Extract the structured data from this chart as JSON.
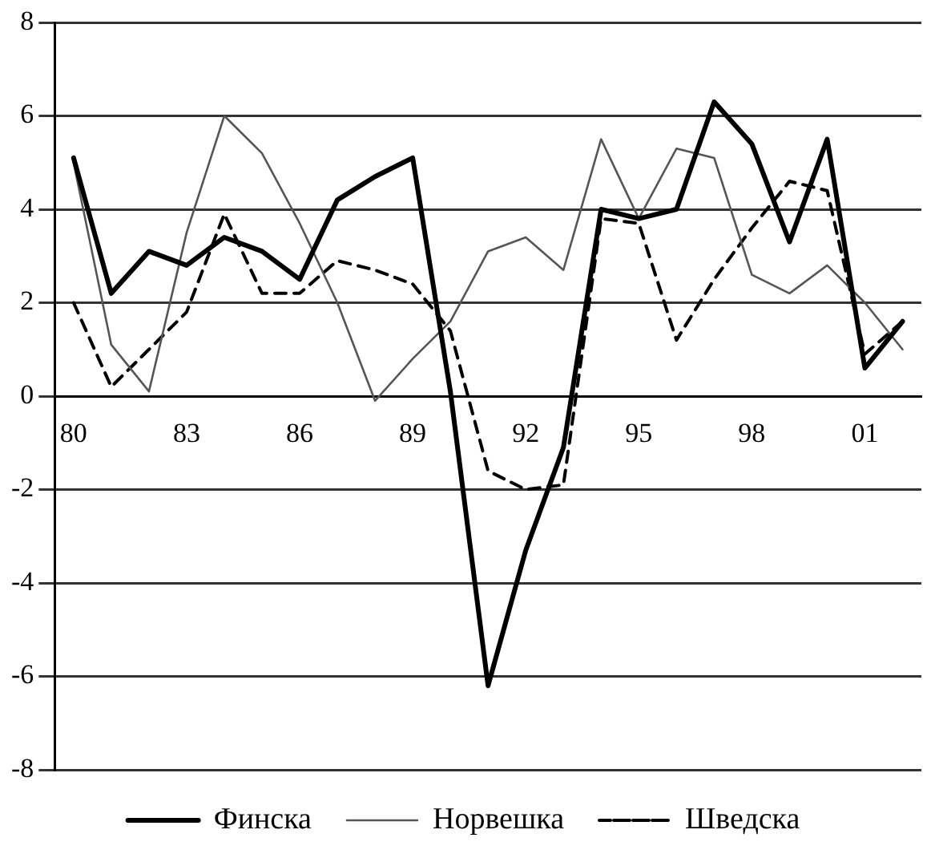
{
  "chart_data": {
    "type": "line",
    "categories": [
      "80",
      null,
      null,
      "83",
      null,
      null,
      "86",
      null,
      null,
      "89",
      null,
      null,
      "92",
      null,
      null,
      "95",
      null,
      null,
      "98",
      null,
      null,
      "01",
      null
    ],
    "series": [
      {
        "name": "Финска",
        "color": "#000000",
        "line_style": "solid",
        "values": [
          5.1,
          2.2,
          3.1,
          2.8,
          3.4,
          3.1,
          2.5,
          4.2,
          4.7,
          5.1,
          0.1,
          -6.2,
          -3.3,
          -1.1,
          4.0,
          3.8,
          4.0,
          6.3,
          5.4,
          3.3,
          5.5,
          0.6,
          1.6
        ]
      },
      {
        "name": "Норвешка",
        "color": "#555555",
        "line_style": "solid",
        "values": [
          5.0,
          1.1,
          0.1,
          3.5,
          6.0,
          5.2,
          3.7,
          2.0,
          -0.1,
          0.8,
          1.6,
          3.1,
          3.4,
          2.7,
          5.5,
          3.8,
          5.3,
          5.1,
          2.6,
          2.2,
          2.8,
          2.0,
          1.0
        ]
      },
      {
        "name": "Шведска",
        "color": "#000000",
        "line_style": "dashed",
        "values": [
          2.0,
          0.2,
          1.0,
          1.8,
          3.9,
          2.2,
          2.2,
          2.9,
          2.7,
          2.4,
          1.4,
          -1.6,
          -2.0,
          -1.9,
          3.8,
          3.7,
          1.2,
          2.5,
          3.6,
          4.6,
          4.4,
          0.9,
          1.6
        ]
      }
    ],
    "ylim": [
      -8,
      8
    ],
    "yticks": [
      -8,
      -6,
      -4,
      -2,
      0,
      2,
      4,
      6,
      8
    ],
    "grid": "y",
    "legend": "bottom",
    "marker": "none"
  }
}
